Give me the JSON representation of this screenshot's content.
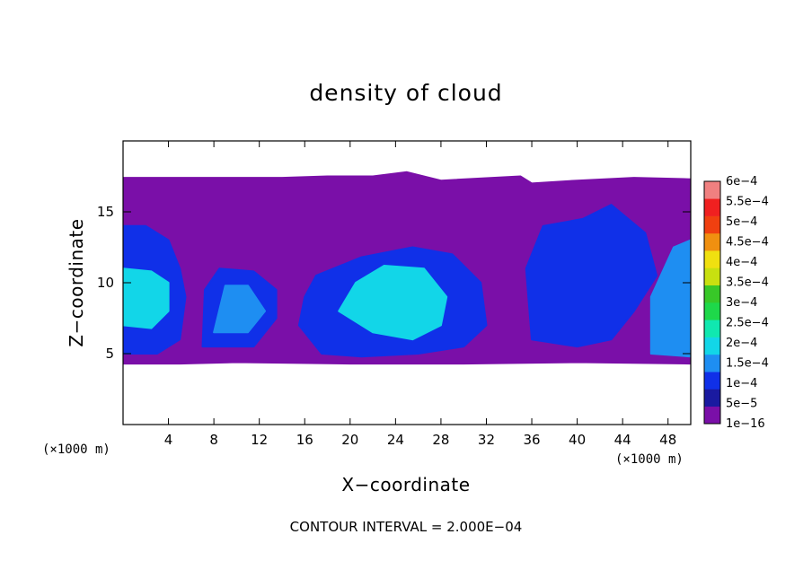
{
  "chart_data": {
    "type": "heatmap",
    "title": "density of cloud",
    "xlabel": "X−coordinate",
    "ylabel": "Z−coordinate",
    "x_unit_label": "(×1000 m)",
    "y_unit_label": "(×1000 m)",
    "xlim": [
      0,
      50
    ],
    "ylim": [
      0,
      20
    ],
    "xticks": [
      4,
      8,
      12,
      16,
      20,
      24,
      28,
      32,
      36,
      40,
      44,
      48
    ],
    "yticks": [
      5,
      10,
      15
    ],
    "x_tick_labels": [
      "4",
      "8",
      "12",
      "16",
      "20",
      "24",
      "28",
      "32",
      "36",
      "40",
      "44",
      "48"
    ],
    "y_tick_labels": [
      "5",
      "10",
      "15"
    ],
    "footer": "CONTOUR INTERVAL = 2.000E−04",
    "colorbar": {
      "labels": [
        "1e−16",
        "5e−5",
        "1e−4",
        "1.5e−4",
        "2e−4",
        "2.5e−4",
        "3e−4",
        "3.5e−4",
        "4e−4",
        "4.5e−4",
        "5e−4",
        "5.5e−4",
        "6e−4"
      ],
      "levels": [
        1e-16,
        5e-05,
        0.0001,
        0.00015,
        0.0002,
        0.00025,
        0.0003,
        0.00035,
        0.0004,
        0.00045,
        0.0005,
        0.00055,
        0.0006
      ],
      "colors": [
        "#7a0fa8",
        "#1a1aa0",
        "#1030e8",
        "#1e8ef2",
        "#12d6e8",
        "#10e8b0",
        "#1ed84a",
        "#38c828",
        "#c8e010",
        "#f0e010",
        "#f09010",
        "#f04010",
        "#f02020",
        "#f08080"
      ]
    },
    "field_regions": [
      {
        "name": "cloud-layer",
        "level_color": "#7a0fa8",
        "outline": [
          [
            0,
            4.3
          ],
          [
            5,
            4.3
          ],
          [
            10,
            4.4
          ],
          [
            20,
            4.3
          ],
          [
            30,
            4.3
          ],
          [
            40,
            4.4
          ],
          [
            50,
            4.3
          ],
          [
            50,
            17.3
          ],
          [
            45,
            17.4
          ],
          [
            40,
            17.2
          ],
          [
            36,
            17.0
          ],
          [
            35,
            17.5
          ],
          [
            28,
            17.2
          ],
          [
            25,
            17.8
          ],
          [
            22,
            17.5
          ],
          [
            18,
            17.5
          ],
          [
            14,
            17.4
          ],
          [
            10,
            17.4
          ],
          [
            5,
            17.4
          ],
          [
            0,
            17.4
          ]
        ]
      },
      {
        "name": "core-west",
        "level_color": "#1030e8",
        "outline": [
          [
            0,
            5.0
          ],
          [
            3,
            5.0
          ],
          [
            5,
            6.0
          ],
          [
            5.5,
            9.0
          ],
          [
            5,
            11.0
          ],
          [
            4,
            13.0
          ],
          [
            2,
            14.0
          ],
          [
            0,
            14.0
          ]
        ]
      },
      {
        "name": "core-west-bright",
        "level_color": "#12d6e8",
        "outline": [
          [
            0,
            7.0
          ],
          [
            2.5,
            6.8
          ],
          [
            4.0,
            8.0
          ],
          [
            4.0,
            10.0
          ],
          [
            2.5,
            10.8
          ],
          [
            0,
            11.0
          ]
        ]
      },
      {
        "name": "core-8-14",
        "level_color": "#1030e8",
        "outline": [
          [
            7.0,
            5.5
          ],
          [
            11.5,
            5.5
          ],
          [
            13.5,
            7.5
          ],
          [
            13.5,
            9.5
          ],
          [
            11.5,
            10.8
          ],
          [
            8.5,
            11.0
          ],
          [
            7.2,
            9.5
          ]
        ]
      },
      {
        "name": "core-8-14-bright",
        "level_color": "#1e8ef2",
        "outline": [
          [
            8.0,
            6.5
          ],
          [
            11.0,
            6.5
          ],
          [
            12.5,
            8.0
          ],
          [
            11.0,
            9.8
          ],
          [
            9.0,
            9.8
          ]
        ]
      },
      {
        "name": "core-central",
        "level_color": "#1030e8",
        "outline": [
          [
            15.5,
            7.0
          ],
          [
            17.5,
            5.0
          ],
          [
            21.0,
            4.8
          ],
          [
            26.0,
            5.0
          ],
          [
            30.0,
            5.5
          ],
          [
            32.0,
            7.0
          ],
          [
            31.5,
            10.0
          ],
          [
            29.0,
            12.0
          ],
          [
            25.5,
            12.5
          ],
          [
            21.0,
            11.8
          ],
          [
            17.0,
            10.5
          ],
          [
            16.0,
            9.0
          ]
        ]
      },
      {
        "name": "core-central-bright",
        "level_color": "#12d6e8",
        "outline": [
          [
            19.0,
            8.0
          ],
          [
            22.0,
            6.5
          ],
          [
            25.5,
            6.0
          ],
          [
            28.0,
            7.0
          ],
          [
            28.5,
            9.0
          ],
          [
            26.5,
            11.0
          ],
          [
            23.0,
            11.2
          ],
          [
            20.5,
            10.0
          ]
        ]
      },
      {
        "name": "core-east",
        "level_color": "#1030e8",
        "outline": [
          [
            36.0,
            6.0
          ],
          [
            40.0,
            5.5
          ],
          [
            43.0,
            6.0
          ],
          [
            45.0,
            8.0
          ],
          [
            47.0,
            10.5
          ],
          [
            46.0,
            13.5
          ],
          [
            43.0,
            15.5
          ],
          [
            40.5,
            14.5
          ],
          [
            37.0,
            14.0
          ],
          [
            35.5,
            11.0
          ]
        ]
      },
      {
        "name": "core-far-east",
        "level_color": "#1e8ef2",
        "outline": [
          [
            46.5,
            5.0
          ],
          [
            50.0,
            4.8
          ],
          [
            50.0,
            13.0
          ],
          [
            48.5,
            12.5
          ],
          [
            46.5,
            9.0
          ]
        ]
      }
    ]
  }
}
